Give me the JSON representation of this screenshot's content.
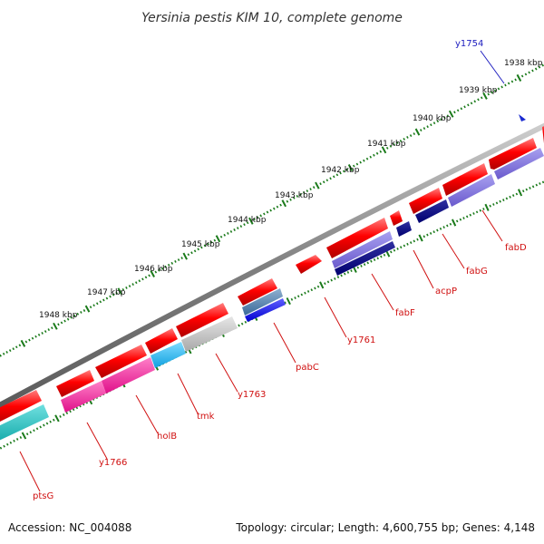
{
  "title": "Yersinia pestis KIM 10, complete genome",
  "footer": {
    "accession": "Accession: NC_004088",
    "topology": "Topology: circular; Length: 4,600,755 bp; Genes: 4,148"
  },
  "ticks": [
    "1938 kbp",
    "1939 kbp",
    "1940 kbp",
    "1941 kbp",
    "1942 kbp",
    "1943 kbp",
    "1944 kbp",
    "1945 kbp",
    "1946 kbp",
    "1947 kbp",
    "1948 kbp"
  ],
  "genes": [
    {
      "name": "y1754",
      "color": "#2020c0"
    },
    {
      "name": "fabD",
      "color": "#d01010"
    },
    {
      "name": "fabG",
      "color": "#d01010"
    },
    {
      "name": "acpP",
      "color": "#d01010"
    },
    {
      "name": "fabF",
      "color": "#d01010"
    },
    {
      "name": "y1761",
      "color": "#d01010"
    },
    {
      "name": "pabC",
      "color": "#d01010"
    },
    {
      "name": "y1763",
      "color": "#d01010"
    },
    {
      "name": "tmk",
      "color": "#d01010"
    },
    {
      "name": "holB",
      "color": "#d01010"
    },
    {
      "name": "y1766",
      "color": "#d01010"
    },
    {
      "name": "ptsG",
      "color": "#d01010"
    }
  ],
  "colors": {
    "forward_strand": "#ff0000",
    "backbone": "#888888",
    "tick": "#1a7a1a",
    "label_red": "#d01010",
    "label_blue": "#2020c0"
  }
}
